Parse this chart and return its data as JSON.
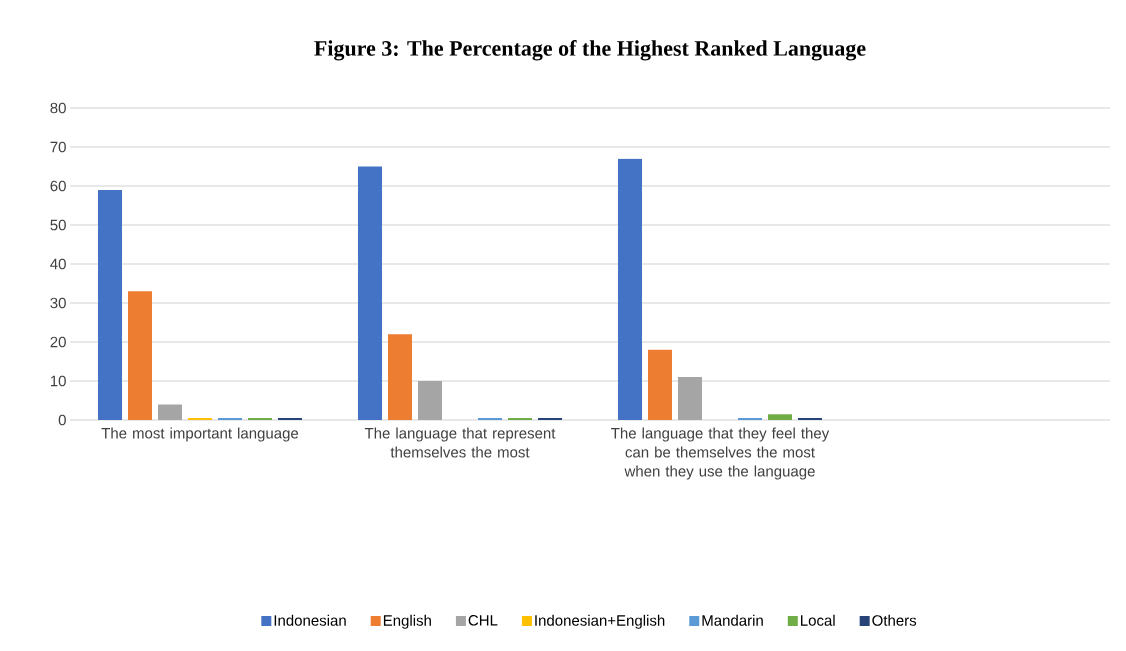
{
  "chart_data": {
    "type": "bar",
    "title": "Figure 3: The Percentage of the Highest Ranked Language",
    "categories": [
      "The most important language",
      "The language that represent themselves the most",
      "The language that they feel they can be themselves the most when they use the language",
      null
    ],
    "series": [
      {
        "name": "Indonesian",
        "color": "#4472c4",
        "values": [
          59,
          65,
          67,
          null
        ]
      },
      {
        "name": "English",
        "color": "#ed7d31",
        "values": [
          33,
          22,
          18,
          null
        ]
      },
      {
        "name": "CHL",
        "color": "#a5a5a5",
        "values": [
          4,
          10,
          11,
          null
        ]
      },
      {
        "name": "Indonesian+English",
        "color": "#ffc000",
        "values": [
          0.5,
          null,
          null,
          null
        ]
      },
      {
        "name": "Mandarin",
        "color": "#5b9bd5",
        "values": [
          0.5,
          0.5,
          0.5,
          null
        ]
      },
      {
        "name": "Local",
        "color": "#70ad47",
        "values": [
          0.5,
          0.5,
          1.5,
          null
        ]
      },
      {
        "name": "Others",
        "color": "#264478",
        "values": [
          0.5,
          0.5,
          0.5,
          null
        ]
      }
    ],
    "ylim": [
      0,
      80
    ],
    "yticks": [
      0,
      10,
      20,
      30,
      40,
      50,
      60,
      70,
      80
    ],
    "grid": "y",
    "legend": "bottom"
  }
}
